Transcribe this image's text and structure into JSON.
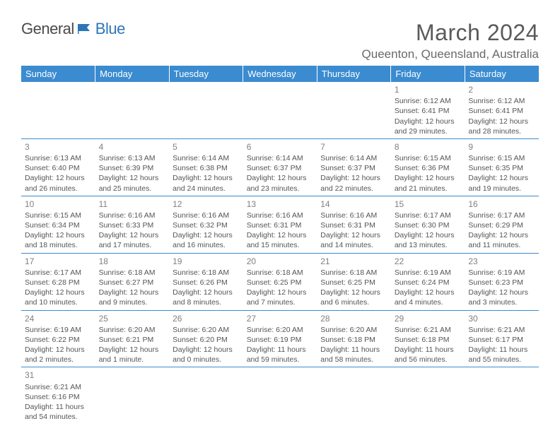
{
  "logo": {
    "text_a": "General",
    "text_b": "Blue"
  },
  "title": "March 2024",
  "location": "Queenton, Queensland, Australia",
  "header_color": "#3b8bd0",
  "divider_color": "#3b8bd0",
  "day_headers": [
    "Sunday",
    "Monday",
    "Tuesday",
    "Wednesday",
    "Thursday",
    "Friday",
    "Saturday"
  ],
  "weeks": [
    [
      null,
      null,
      null,
      null,
      null,
      {
        "n": "1",
        "sr": "Sunrise: 6:12 AM",
        "ss": "Sunset: 6:41 PM",
        "d1": "Daylight: 12 hours",
        "d2": "and 29 minutes."
      },
      {
        "n": "2",
        "sr": "Sunrise: 6:12 AM",
        "ss": "Sunset: 6:41 PM",
        "d1": "Daylight: 12 hours",
        "d2": "and 28 minutes."
      }
    ],
    [
      {
        "n": "3",
        "sr": "Sunrise: 6:13 AM",
        "ss": "Sunset: 6:40 PM",
        "d1": "Daylight: 12 hours",
        "d2": "and 26 minutes."
      },
      {
        "n": "4",
        "sr": "Sunrise: 6:13 AM",
        "ss": "Sunset: 6:39 PM",
        "d1": "Daylight: 12 hours",
        "d2": "and 25 minutes."
      },
      {
        "n": "5",
        "sr": "Sunrise: 6:14 AM",
        "ss": "Sunset: 6:38 PM",
        "d1": "Daylight: 12 hours",
        "d2": "and 24 minutes."
      },
      {
        "n": "6",
        "sr": "Sunrise: 6:14 AM",
        "ss": "Sunset: 6:37 PM",
        "d1": "Daylight: 12 hours",
        "d2": "and 23 minutes."
      },
      {
        "n": "7",
        "sr": "Sunrise: 6:14 AM",
        "ss": "Sunset: 6:37 PM",
        "d1": "Daylight: 12 hours",
        "d2": "and 22 minutes."
      },
      {
        "n": "8",
        "sr": "Sunrise: 6:15 AM",
        "ss": "Sunset: 6:36 PM",
        "d1": "Daylight: 12 hours",
        "d2": "and 21 minutes."
      },
      {
        "n": "9",
        "sr": "Sunrise: 6:15 AM",
        "ss": "Sunset: 6:35 PM",
        "d1": "Daylight: 12 hours",
        "d2": "and 19 minutes."
      }
    ],
    [
      {
        "n": "10",
        "sr": "Sunrise: 6:15 AM",
        "ss": "Sunset: 6:34 PM",
        "d1": "Daylight: 12 hours",
        "d2": "and 18 minutes."
      },
      {
        "n": "11",
        "sr": "Sunrise: 6:16 AM",
        "ss": "Sunset: 6:33 PM",
        "d1": "Daylight: 12 hours",
        "d2": "and 17 minutes."
      },
      {
        "n": "12",
        "sr": "Sunrise: 6:16 AM",
        "ss": "Sunset: 6:32 PM",
        "d1": "Daylight: 12 hours",
        "d2": "and 16 minutes."
      },
      {
        "n": "13",
        "sr": "Sunrise: 6:16 AM",
        "ss": "Sunset: 6:31 PM",
        "d1": "Daylight: 12 hours",
        "d2": "and 15 minutes."
      },
      {
        "n": "14",
        "sr": "Sunrise: 6:16 AM",
        "ss": "Sunset: 6:31 PM",
        "d1": "Daylight: 12 hours",
        "d2": "and 14 minutes."
      },
      {
        "n": "15",
        "sr": "Sunrise: 6:17 AM",
        "ss": "Sunset: 6:30 PM",
        "d1": "Daylight: 12 hours",
        "d2": "and 13 minutes."
      },
      {
        "n": "16",
        "sr": "Sunrise: 6:17 AM",
        "ss": "Sunset: 6:29 PM",
        "d1": "Daylight: 12 hours",
        "d2": "and 11 minutes."
      }
    ],
    [
      {
        "n": "17",
        "sr": "Sunrise: 6:17 AM",
        "ss": "Sunset: 6:28 PM",
        "d1": "Daylight: 12 hours",
        "d2": "and 10 minutes."
      },
      {
        "n": "18",
        "sr": "Sunrise: 6:18 AM",
        "ss": "Sunset: 6:27 PM",
        "d1": "Daylight: 12 hours",
        "d2": "and 9 minutes."
      },
      {
        "n": "19",
        "sr": "Sunrise: 6:18 AM",
        "ss": "Sunset: 6:26 PM",
        "d1": "Daylight: 12 hours",
        "d2": "and 8 minutes."
      },
      {
        "n": "20",
        "sr": "Sunrise: 6:18 AM",
        "ss": "Sunset: 6:25 PM",
        "d1": "Daylight: 12 hours",
        "d2": "and 7 minutes."
      },
      {
        "n": "21",
        "sr": "Sunrise: 6:18 AM",
        "ss": "Sunset: 6:25 PM",
        "d1": "Daylight: 12 hours",
        "d2": "and 6 minutes."
      },
      {
        "n": "22",
        "sr": "Sunrise: 6:19 AM",
        "ss": "Sunset: 6:24 PM",
        "d1": "Daylight: 12 hours",
        "d2": "and 4 minutes."
      },
      {
        "n": "23",
        "sr": "Sunrise: 6:19 AM",
        "ss": "Sunset: 6:23 PM",
        "d1": "Daylight: 12 hours",
        "d2": "and 3 minutes."
      }
    ],
    [
      {
        "n": "24",
        "sr": "Sunrise: 6:19 AM",
        "ss": "Sunset: 6:22 PM",
        "d1": "Daylight: 12 hours",
        "d2": "and 2 minutes."
      },
      {
        "n": "25",
        "sr": "Sunrise: 6:20 AM",
        "ss": "Sunset: 6:21 PM",
        "d1": "Daylight: 12 hours",
        "d2": "and 1 minute."
      },
      {
        "n": "26",
        "sr": "Sunrise: 6:20 AM",
        "ss": "Sunset: 6:20 PM",
        "d1": "Daylight: 12 hours",
        "d2": "and 0 minutes."
      },
      {
        "n": "27",
        "sr": "Sunrise: 6:20 AM",
        "ss": "Sunset: 6:19 PM",
        "d1": "Daylight: 11 hours",
        "d2": "and 59 minutes."
      },
      {
        "n": "28",
        "sr": "Sunrise: 6:20 AM",
        "ss": "Sunset: 6:18 PM",
        "d1": "Daylight: 11 hours",
        "d2": "and 58 minutes."
      },
      {
        "n": "29",
        "sr": "Sunrise: 6:21 AM",
        "ss": "Sunset: 6:18 PM",
        "d1": "Daylight: 11 hours",
        "d2": "and 56 minutes."
      },
      {
        "n": "30",
        "sr": "Sunrise: 6:21 AM",
        "ss": "Sunset: 6:17 PM",
        "d1": "Daylight: 11 hours",
        "d2": "and 55 minutes."
      }
    ],
    [
      {
        "n": "31",
        "sr": "Sunrise: 6:21 AM",
        "ss": "Sunset: 6:16 PM",
        "d1": "Daylight: 11 hours",
        "d2": "and 54 minutes."
      },
      null,
      null,
      null,
      null,
      null,
      null
    ]
  ]
}
